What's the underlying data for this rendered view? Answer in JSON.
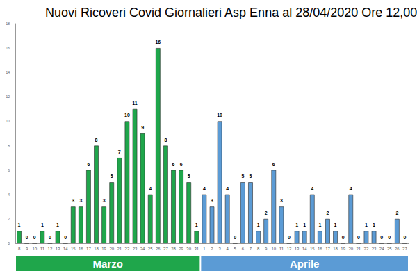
{
  "chart_data": {
    "type": "bar",
    "title": "Nuovi Ricoveri Covid Giornalieri Asp Enna al 28/04/2020 Ore 12,00",
    "categories": [
      "8",
      "9",
      "10",
      "11",
      "12",
      "13",
      "14",
      "15",
      "16",
      "17",
      "18",
      "19",
      "20",
      "21",
      "22",
      "23",
      "24",
      "25",
      "26",
      "27",
      "28",
      "29",
      "30",
      "31",
      "1",
      "2",
      "3",
      "4",
      "5",
      "6",
      "7",
      "8",
      "9",
      "10",
      "11",
      "12",
      "13",
      "14",
      "15",
      "16",
      "17",
      "18",
      "19",
      "20",
      "21",
      "22",
      "23",
      "24",
      "25",
      "26",
      "27"
    ],
    "series": [
      {
        "name": "Marzo",
        "color": "#1fa64b",
        "values": [
          1,
          0,
          0,
          1,
          0,
          1,
          0,
          3,
          3,
          6,
          8,
          3,
          5,
          7,
          10,
          11,
          9,
          4,
          16,
          8,
          6,
          6,
          5,
          1,
          null,
          null,
          null,
          null,
          null,
          null,
          null,
          null,
          null,
          null,
          null,
          null,
          null,
          null,
          null,
          null,
          null,
          null,
          null,
          null,
          null,
          null,
          null,
          null,
          null,
          null,
          null
        ]
      },
      {
        "name": "Aprile",
        "color": "#5b9bd5",
        "values": [
          null,
          null,
          null,
          null,
          null,
          null,
          null,
          null,
          null,
          null,
          null,
          null,
          null,
          null,
          null,
          null,
          null,
          null,
          null,
          null,
          null,
          null,
          null,
          null,
          4,
          3,
          10,
          4,
          0,
          5,
          5,
          1,
          2,
          6,
          3,
          0,
          1,
          1,
          4,
          1,
          2,
          1,
          0,
          4,
          0,
          1,
          1,
          0,
          0,
          2,
          0
        ]
      }
    ],
    "ylim": [
      0,
      18
    ],
    "yticks": [
      0,
      2,
      4,
      6,
      8,
      10,
      12,
      14,
      16,
      18
    ],
    "grid": false,
    "data_labels": true
  }
}
